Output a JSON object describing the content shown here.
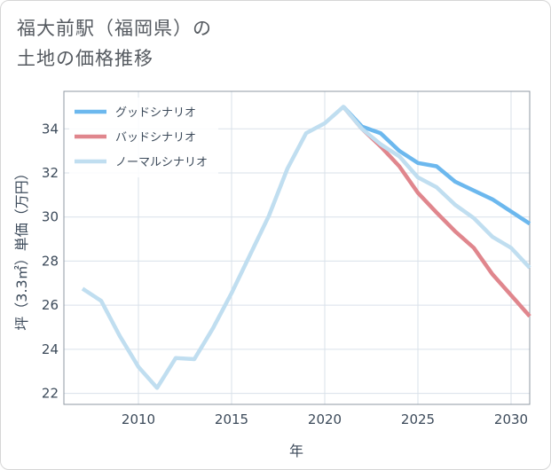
{
  "title_lines": [
    "福大前駅（福岡県）の",
    "土地の価格推移"
  ],
  "chart_data": {
    "type": "line",
    "xlabel": "年",
    "ylabel": "坪（3.3㎡）単価（万円）",
    "xlim": [
      2006,
      2031
    ],
    "ylim": [
      21.5,
      35.7
    ],
    "xticks": [
      2010,
      2015,
      2020,
      2025,
      2030
    ],
    "yticks": [
      22,
      24,
      26,
      28,
      30,
      32,
      34
    ],
    "legend_position": "top-left",
    "series": [
      {
        "name": "グッドシナリオ",
        "color": "#6cb8ee",
        "x": [
          2021,
          2022,
          2023,
          2024,
          2025,
          2026,
          2027,
          2028,
          2029,
          2030,
          2031
        ],
        "y": [
          35.0,
          34.1,
          33.8,
          33.0,
          32.45,
          32.3,
          31.6,
          31.2,
          30.8,
          30.25,
          29.7
        ]
      },
      {
        "name": "バッドシナリオ",
        "color": "#e0868d",
        "x": [
          2021,
          2022,
          2023,
          2024,
          2025,
          2026,
          2027,
          2028,
          2029,
          2030,
          2031
        ],
        "y": [
          35.0,
          34.0,
          33.2,
          32.3,
          31.1,
          30.2,
          29.35,
          28.6,
          27.4,
          26.45,
          25.5
        ]
      },
      {
        "name": "ノーマルシナリオ",
        "color": "#c0def0",
        "x": [
          2007,
          2008,
          2009,
          2010,
          2011,
          2012,
          2013,
          2014,
          2015,
          2016,
          2017,
          2018,
          2019,
          2020,
          2021,
          2022,
          2023,
          2024,
          2025,
          2026,
          2027,
          2028,
          2029,
          2030,
          2031
        ],
        "y": [
          26.75,
          26.2,
          24.6,
          23.2,
          22.25,
          23.6,
          23.55,
          24.95,
          26.55,
          28.3,
          30.05,
          32.2,
          33.8,
          34.25,
          35.0,
          34.0,
          33.3,
          32.75,
          31.8,
          31.35,
          30.55,
          29.95,
          29.1,
          28.6,
          27.7
        ]
      }
    ]
  }
}
